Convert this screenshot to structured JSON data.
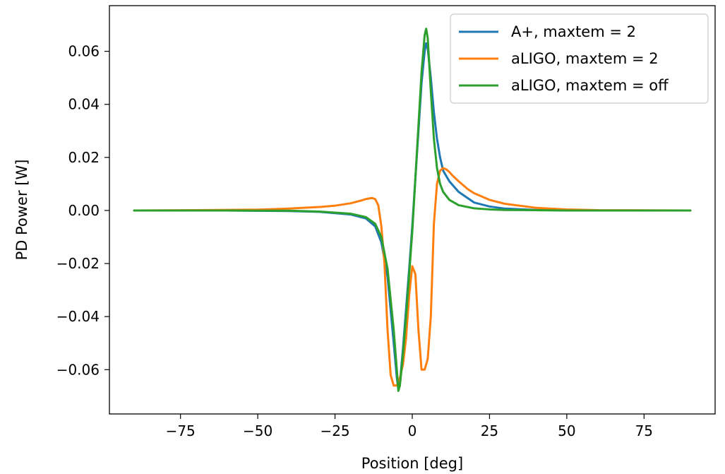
{
  "chart_data": {
    "type": "line",
    "title": "",
    "xlabel": "Position [deg]",
    "ylabel": "PD Power [W]",
    "xlim": [
      -98,
      98
    ],
    "ylim": [
      -0.0767,
      0.0772
    ],
    "xticks": [
      -75,
      -50,
      -25,
      0,
      25,
      50,
      75
    ],
    "xtick_labels": [
      "−75",
      "−50",
      "−25",
      "0",
      "25",
      "50",
      "75"
    ],
    "yticks": [
      -0.06,
      -0.04,
      -0.02,
      0.0,
      0.02,
      0.04,
      0.06
    ],
    "ytick_labels": [
      "−0.06",
      "−0.04",
      "−0.02",
      "0.00",
      "0.02",
      "0.04",
      "0.06"
    ],
    "grid": false,
    "legend_position": "top-right",
    "series": [
      {
        "name": "A+, maxtem = 2",
        "color": "#1f77b4",
        "x": [
          -90,
          -60,
          -40,
          -30,
          -20,
          -15,
          -12,
          -10,
          -8,
          -6,
          -5,
          -4.5,
          -4,
          -3,
          -2,
          -1,
          0,
          1,
          2,
          3,
          4,
          4.5,
          5,
          6,
          7,
          8,
          9,
          10,
          12,
          15,
          20,
          25,
          30,
          40,
          50,
          60,
          90
        ],
        "y": [
          0,
          0,
          -0.0002,
          -0.0005,
          -0.0015,
          -0.003,
          -0.006,
          -0.012,
          -0.025,
          -0.05,
          -0.063,
          -0.0675,
          -0.065,
          -0.052,
          -0.037,
          -0.022,
          -0.006,
          0.012,
          0.03,
          0.048,
          0.06,
          0.063,
          0.061,
          0.05,
          0.037,
          0.027,
          0.02,
          0.015,
          0.011,
          0.007,
          0.003,
          0.0015,
          0.0007,
          0.0002,
          0.0001,
          0,
          0
        ]
      },
      {
        "name": "aLIGO, maxtem = 2",
        "color": "#ff7f0e",
        "x": [
          -90,
          -70,
          -50,
          -40,
          -30,
          -25,
          -20,
          -17,
          -15,
          -13,
          -12,
          -11,
          -10,
          -9,
          -8,
          -7,
          -6,
          -5,
          -4,
          -3,
          -2,
          -1,
          0,
          1,
          2,
          3,
          4,
          5,
          6,
          7,
          8,
          9,
          10,
          11,
          12,
          13,
          15,
          18,
          20,
          25,
          30,
          40,
          50,
          60,
          90
        ],
        "y": [
          0,
          0.0001,
          0.0003,
          0.0007,
          0.0013,
          0.0018,
          0.0027,
          0.0036,
          0.0043,
          0.0047,
          0.0043,
          0.002,
          -0.006,
          -0.02,
          -0.045,
          -0.062,
          -0.066,
          -0.066,
          -0.063,
          -0.058,
          -0.048,
          -0.032,
          -0.021,
          -0.024,
          -0.045,
          -0.06,
          -0.06,
          -0.056,
          -0.04,
          -0.005,
          0.01,
          0.015,
          0.016,
          0.0155,
          0.0145,
          0.0132,
          0.011,
          0.008,
          0.0065,
          0.004,
          0.0025,
          0.001,
          0.0004,
          0.0001,
          0
        ]
      },
      {
        "name": "aLIGO, maxtem = off",
        "color": "#2ca02c",
        "x": [
          -90,
          -60,
          -40,
          -30,
          -20,
          -15,
          -12,
          -10,
          -8,
          -6,
          -5,
          -4.5,
          -4,
          -3,
          -2,
          -1,
          0,
          1,
          2,
          3,
          4,
          4.5,
          5,
          6,
          7,
          8,
          9,
          10,
          12,
          15,
          20,
          25,
          30,
          40,
          50,
          60,
          90
        ],
        "y": [
          0,
          0,
          -0.0001,
          -0.0004,
          -0.0012,
          -0.0025,
          -0.005,
          -0.01,
          -0.022,
          -0.045,
          -0.06,
          -0.068,
          -0.066,
          -0.054,
          -0.04,
          -0.024,
          -0.008,
          0.012,
          0.032,
          0.052,
          0.066,
          0.0685,
          0.065,
          0.045,
          0.027,
          0.016,
          0.01,
          0.007,
          0.004,
          0.002,
          0.0008,
          0.0004,
          0.0002,
          0.0001,
          0,
          0,
          0
        ]
      }
    ]
  }
}
